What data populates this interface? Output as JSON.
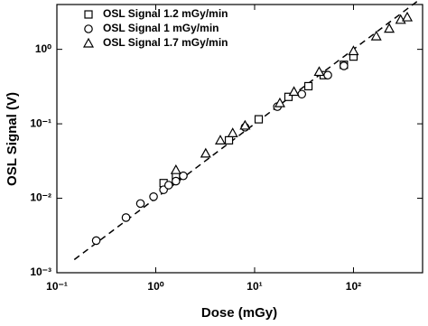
{
  "chart_data": {
    "type": "scatter",
    "x_label": "Dose (mGy)",
    "y_label": "OSL Signal (V)",
    "xlog": true,
    "ylog": true,
    "legend": "top-left",
    "xlim": [
      0.1,
      500
    ],
    "ylim": [
      0.001,
      4
    ],
    "xticks": [
      {
        "value": 0.1,
        "label": "10⁻¹"
      },
      {
        "value": 1,
        "label": "10⁰"
      },
      {
        "value": 10,
        "label": "10¹"
      },
      {
        "value": 100,
        "label": "10²"
      }
    ],
    "yticks": [
      {
        "value": 0.001,
        "label": "10⁻³"
      },
      {
        "value": 0.01,
        "label": "10⁻²"
      },
      {
        "value": 0.1,
        "label": "10⁻¹"
      },
      {
        "value": 1,
        "label": "10⁰"
      }
    ],
    "reference_line": {
      "x": [
        0.15,
        470
      ],
      "y": [
        0.0015,
        4.7
      ],
      "color": "#000"
    },
    "series": [
      {
        "name": "OSL Signal 1.2 mGy/min",
        "marker": "square",
        "color": "#000",
        "x": [
          1.2,
          1.6,
          5.5,
          11,
          22,
          35,
          50,
          80,
          100
        ],
        "values": [
          0.016,
          0.02,
          0.06,
          0.115,
          0.23,
          0.32,
          0.45,
          0.62,
          0.8
        ]
      },
      {
        "name": "OSL Signal 1 mGy/min",
        "marker": "circle",
        "color": "#000",
        "x": [
          0.25,
          0.5,
          0.7,
          0.95,
          1.2,
          1.35,
          1.6,
          1.9,
          8,
          17,
          30,
          55,
          80
        ],
        "values": [
          0.0027,
          0.0055,
          0.0085,
          0.0105,
          0.013,
          0.015,
          0.017,
          0.02,
          0.09,
          0.17,
          0.25,
          0.45,
          0.6
        ]
      },
      {
        "name": "OSL Signal 1.7 mGy/min",
        "marker": "triangle",
        "color": "#000",
        "x": [
          1.6,
          3.2,
          4.5,
          6,
          8,
          18,
          25,
          45,
          100,
          170,
          230,
          300,
          350
        ],
        "values": [
          0.024,
          0.04,
          0.06,
          0.075,
          0.095,
          0.19,
          0.27,
          0.5,
          0.95,
          1.5,
          1.9,
          2.5,
          2.7
        ]
      }
    ]
  }
}
